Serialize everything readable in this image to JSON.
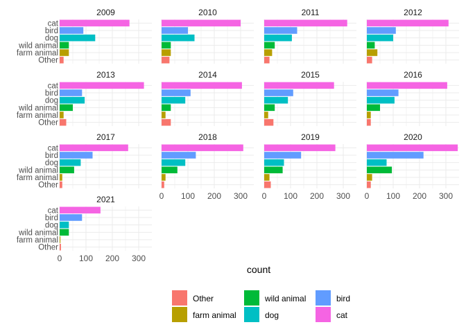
{
  "chart_data": {
    "type": "bar",
    "orientation": "horizontal",
    "facet_by": "year",
    "facets": [
      "2009",
      "2010",
      "2011",
      "2012",
      "2013",
      "2014",
      "2015",
      "2016",
      "2017",
      "2018",
      "2019",
      "2020",
      "2021"
    ],
    "categories": [
      "cat",
      "bird",
      "dog",
      "wild animal",
      "farm animal",
      "Other"
    ],
    "series": [
      {
        "name": "2009",
        "values": [
          265,
          90,
          135,
          35,
          35,
          15
        ]
      },
      {
        "name": "2010",
        "values": [
          300,
          100,
          125,
          35,
          35,
          30
        ]
      },
      {
        "name": "2011",
        "values": [
          315,
          125,
          105,
          40,
          30,
          20
        ]
      },
      {
        "name": "2012",
        "values": [
          310,
          110,
          100,
          30,
          40,
          20
        ]
      },
      {
        "name": "2013",
        "values": [
          320,
          85,
          95,
          50,
          15,
          25
        ]
      },
      {
        "name": "2014",
        "values": [
          305,
          110,
          90,
          35,
          15,
          35
        ]
      },
      {
        "name": "2015",
        "values": [
          265,
          110,
          90,
          40,
          15,
          35
        ]
      },
      {
        "name": "2016",
        "values": [
          305,
          120,
          105,
          50,
          15,
          15
        ]
      },
      {
        "name": "2017",
        "values": [
          260,
          125,
          80,
          55,
          10,
          10
        ]
      },
      {
        "name": "2018",
        "values": [
          310,
          130,
          90,
          60,
          15,
          10
        ]
      },
      {
        "name": "2019",
        "values": [
          270,
          140,
          75,
          70,
          20,
          25
        ]
      },
      {
        "name": "2020",
        "values": [
          345,
          215,
          75,
          95,
          20,
          15
        ]
      },
      {
        "name": "2021",
        "values": [
          155,
          85,
          35,
          35,
          3,
          5
        ]
      }
    ],
    "xlabel": "count",
    "ylabel": "",
    "xlim": [
      0,
      350
    ],
    "xticks": [
      "0",
      "100",
      "200",
      "300"
    ],
    "grid": true,
    "legend": {
      "placement": "bottom",
      "items": [
        {
          "label": "Other",
          "color": "#F8766D"
        },
        {
          "label": "farm animal",
          "color": "#B79F00"
        },
        {
          "label": "wild animal",
          "color": "#00BA38"
        },
        {
          "label": "dog",
          "color": "#00BFC4"
        },
        {
          "label": "bird",
          "color": "#619CFF"
        },
        {
          "label": "cat",
          "color": "#F564E3"
        }
      ]
    },
    "colors": {
      "cat": "#F564E3",
      "bird": "#619CFF",
      "dog": "#00BFC4",
      "wild animal": "#00BA38",
      "farm animal": "#B79F00",
      "Other": "#F8766D"
    }
  }
}
